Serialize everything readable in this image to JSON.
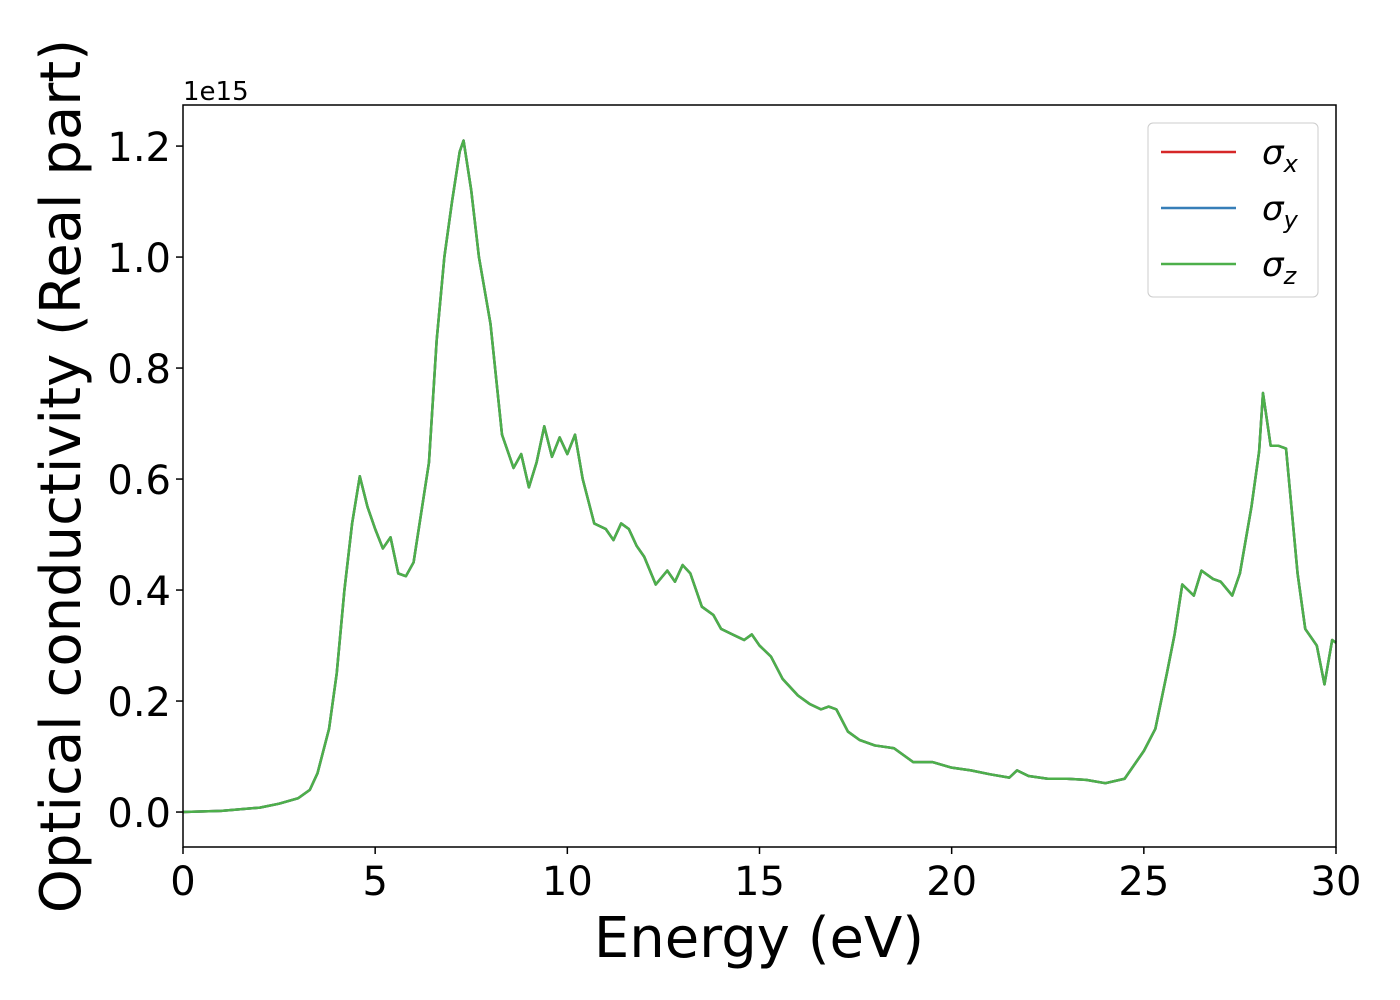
{
  "chart_data": {
    "type": "line",
    "xlabel": "Energy (eV)",
    "ylabel": "Optical conductivity (Real part)",
    "y_offset_label": "1e15",
    "xlim": [
      0,
      30
    ],
    "ylim": [
      -0.063,
      1.274
    ],
    "xticks": [
      0,
      5,
      10,
      15,
      20,
      25,
      30
    ],
    "yticks": [
      {
        "value": 0,
        "label": "0.0"
      },
      {
        "value": 0.2,
        "label": "0.2"
      },
      {
        "value": 0.4,
        "label": "0.4"
      },
      {
        "value": 0.6,
        "label": "0.6"
      },
      {
        "value": 0.8,
        "label": "0.8"
      },
      {
        "value": 1.0,
        "label": "1.0"
      },
      {
        "value": 1.2,
        "label": "1.2"
      }
    ],
    "legend": "upper right",
    "grid": false,
    "x": [
      0,
      1,
      2,
      2.5,
      3,
      3.3,
      3.5,
      3.8,
      4.0,
      4.2,
      4.4,
      4.6,
      4.8,
      5.0,
      5.2,
      5.4,
      5.6,
      5.8,
      6.0,
      6.2,
      6.4,
      6.6,
      6.8,
      7.0,
      7.2,
      7.3,
      7.5,
      7.7,
      8.0,
      8.3,
      8.6,
      8.8,
      9.0,
      9.2,
      9.4,
      9.6,
      9.8,
      10.0,
      10.2,
      10.4,
      10.7,
      11.0,
      11.2,
      11.4,
      11.6,
      11.8,
      12.0,
      12.3,
      12.6,
      12.8,
      13.0,
      13.2,
      13.5,
      13.8,
      14.0,
      14.3,
      14.6,
      14.8,
      15.0,
      15.3,
      15.6,
      16.0,
      16.3,
      16.6,
      16.8,
      17.0,
      17.3,
      17.6,
      18.0,
      18.5,
      19.0,
      19.5,
      20.0,
      20.5,
      21.0,
      21.5,
      21.7,
      22.0,
      22.5,
      23.0,
      23.5,
      24.0,
      24.5,
      25.0,
      25.3,
      25.6,
      25.8,
      26.0,
      26.3,
      26.5,
      26.8,
      27.0,
      27.3,
      27.5,
      27.8,
      28.0,
      28.1,
      28.3,
      28.5,
      28.7,
      29.0,
      29.2,
      29.5,
      29.7,
      29.9,
      30.0
    ],
    "series": [
      {
        "name": "σx",
        "color": "#d62728",
        "values": [
          0,
          0.002,
          0.008,
          0.015,
          0.025,
          0.04,
          0.07,
          0.15,
          0.25,
          0.4,
          0.52,
          0.605,
          0.55,
          0.51,
          0.475,
          0.495,
          0.43,
          0.425,
          0.45,
          0.54,
          0.63,
          0.85,
          1.0,
          1.1,
          1.19,
          1.21,
          1.12,
          1.0,
          0.88,
          0.68,
          0.62,
          0.645,
          0.585,
          0.63,
          0.695,
          0.64,
          0.675,
          0.645,
          0.68,
          0.6,
          0.52,
          0.51,
          0.49,
          0.52,
          0.51,
          0.48,
          0.46,
          0.41,
          0.435,
          0.415,
          0.445,
          0.43,
          0.37,
          0.355,
          0.33,
          0.32,
          0.31,
          0.32,
          0.3,
          0.28,
          0.24,
          0.21,
          0.195,
          0.185,
          0.19,
          0.185,
          0.145,
          0.13,
          0.12,
          0.115,
          0.09,
          0.09,
          0.08,
          0.075,
          0.068,
          0.062,
          0.075,
          0.065,
          0.06,
          0.06,
          0.058,
          0.052,
          0.06,
          0.11,
          0.15,
          0.25,
          0.32,
          0.41,
          0.39,
          0.435,
          0.42,
          0.415,
          0.39,
          0.43,
          0.55,
          0.65,
          0.755,
          0.66,
          0.66,
          0.655,
          0.43,
          0.33,
          0.3,
          0.23,
          0.31,
          0.305
        ]
      },
      {
        "name": "σy",
        "color": "#377eb8",
        "values": [
          0,
          0.002,
          0.008,
          0.015,
          0.025,
          0.04,
          0.07,
          0.15,
          0.25,
          0.4,
          0.52,
          0.605,
          0.55,
          0.51,
          0.475,
          0.495,
          0.43,
          0.425,
          0.45,
          0.54,
          0.63,
          0.85,
          1.0,
          1.1,
          1.19,
          1.21,
          1.12,
          1.0,
          0.88,
          0.68,
          0.62,
          0.645,
          0.585,
          0.63,
          0.695,
          0.64,
          0.675,
          0.645,
          0.68,
          0.6,
          0.52,
          0.51,
          0.49,
          0.52,
          0.51,
          0.48,
          0.46,
          0.41,
          0.435,
          0.415,
          0.445,
          0.43,
          0.37,
          0.355,
          0.33,
          0.32,
          0.31,
          0.32,
          0.3,
          0.28,
          0.24,
          0.21,
          0.195,
          0.185,
          0.19,
          0.185,
          0.145,
          0.13,
          0.12,
          0.115,
          0.09,
          0.09,
          0.08,
          0.075,
          0.068,
          0.062,
          0.075,
          0.065,
          0.06,
          0.06,
          0.058,
          0.052,
          0.06,
          0.11,
          0.15,
          0.25,
          0.32,
          0.41,
          0.39,
          0.435,
          0.42,
          0.415,
          0.39,
          0.43,
          0.55,
          0.65,
          0.755,
          0.66,
          0.66,
          0.655,
          0.43,
          0.33,
          0.3,
          0.23,
          0.31,
          0.305
        ]
      },
      {
        "name": "σz",
        "color": "#4daf4a",
        "values": [
          0,
          0.002,
          0.008,
          0.015,
          0.025,
          0.04,
          0.07,
          0.15,
          0.25,
          0.4,
          0.52,
          0.605,
          0.55,
          0.51,
          0.475,
          0.495,
          0.43,
          0.425,
          0.45,
          0.54,
          0.63,
          0.85,
          1.0,
          1.1,
          1.19,
          1.21,
          1.12,
          1.0,
          0.88,
          0.68,
          0.62,
          0.645,
          0.585,
          0.63,
          0.695,
          0.64,
          0.675,
          0.645,
          0.68,
          0.6,
          0.52,
          0.51,
          0.49,
          0.52,
          0.51,
          0.48,
          0.46,
          0.41,
          0.435,
          0.415,
          0.445,
          0.43,
          0.37,
          0.355,
          0.33,
          0.32,
          0.31,
          0.32,
          0.3,
          0.28,
          0.24,
          0.21,
          0.195,
          0.185,
          0.19,
          0.185,
          0.145,
          0.13,
          0.12,
          0.115,
          0.09,
          0.09,
          0.08,
          0.075,
          0.068,
          0.062,
          0.075,
          0.065,
          0.06,
          0.06,
          0.058,
          0.052,
          0.06,
          0.11,
          0.15,
          0.25,
          0.32,
          0.41,
          0.39,
          0.435,
          0.42,
          0.415,
          0.39,
          0.43,
          0.55,
          0.65,
          0.755,
          0.66,
          0.66,
          0.655,
          0.43,
          0.33,
          0.3,
          0.23,
          0.31,
          0.305
        ]
      }
    ]
  }
}
